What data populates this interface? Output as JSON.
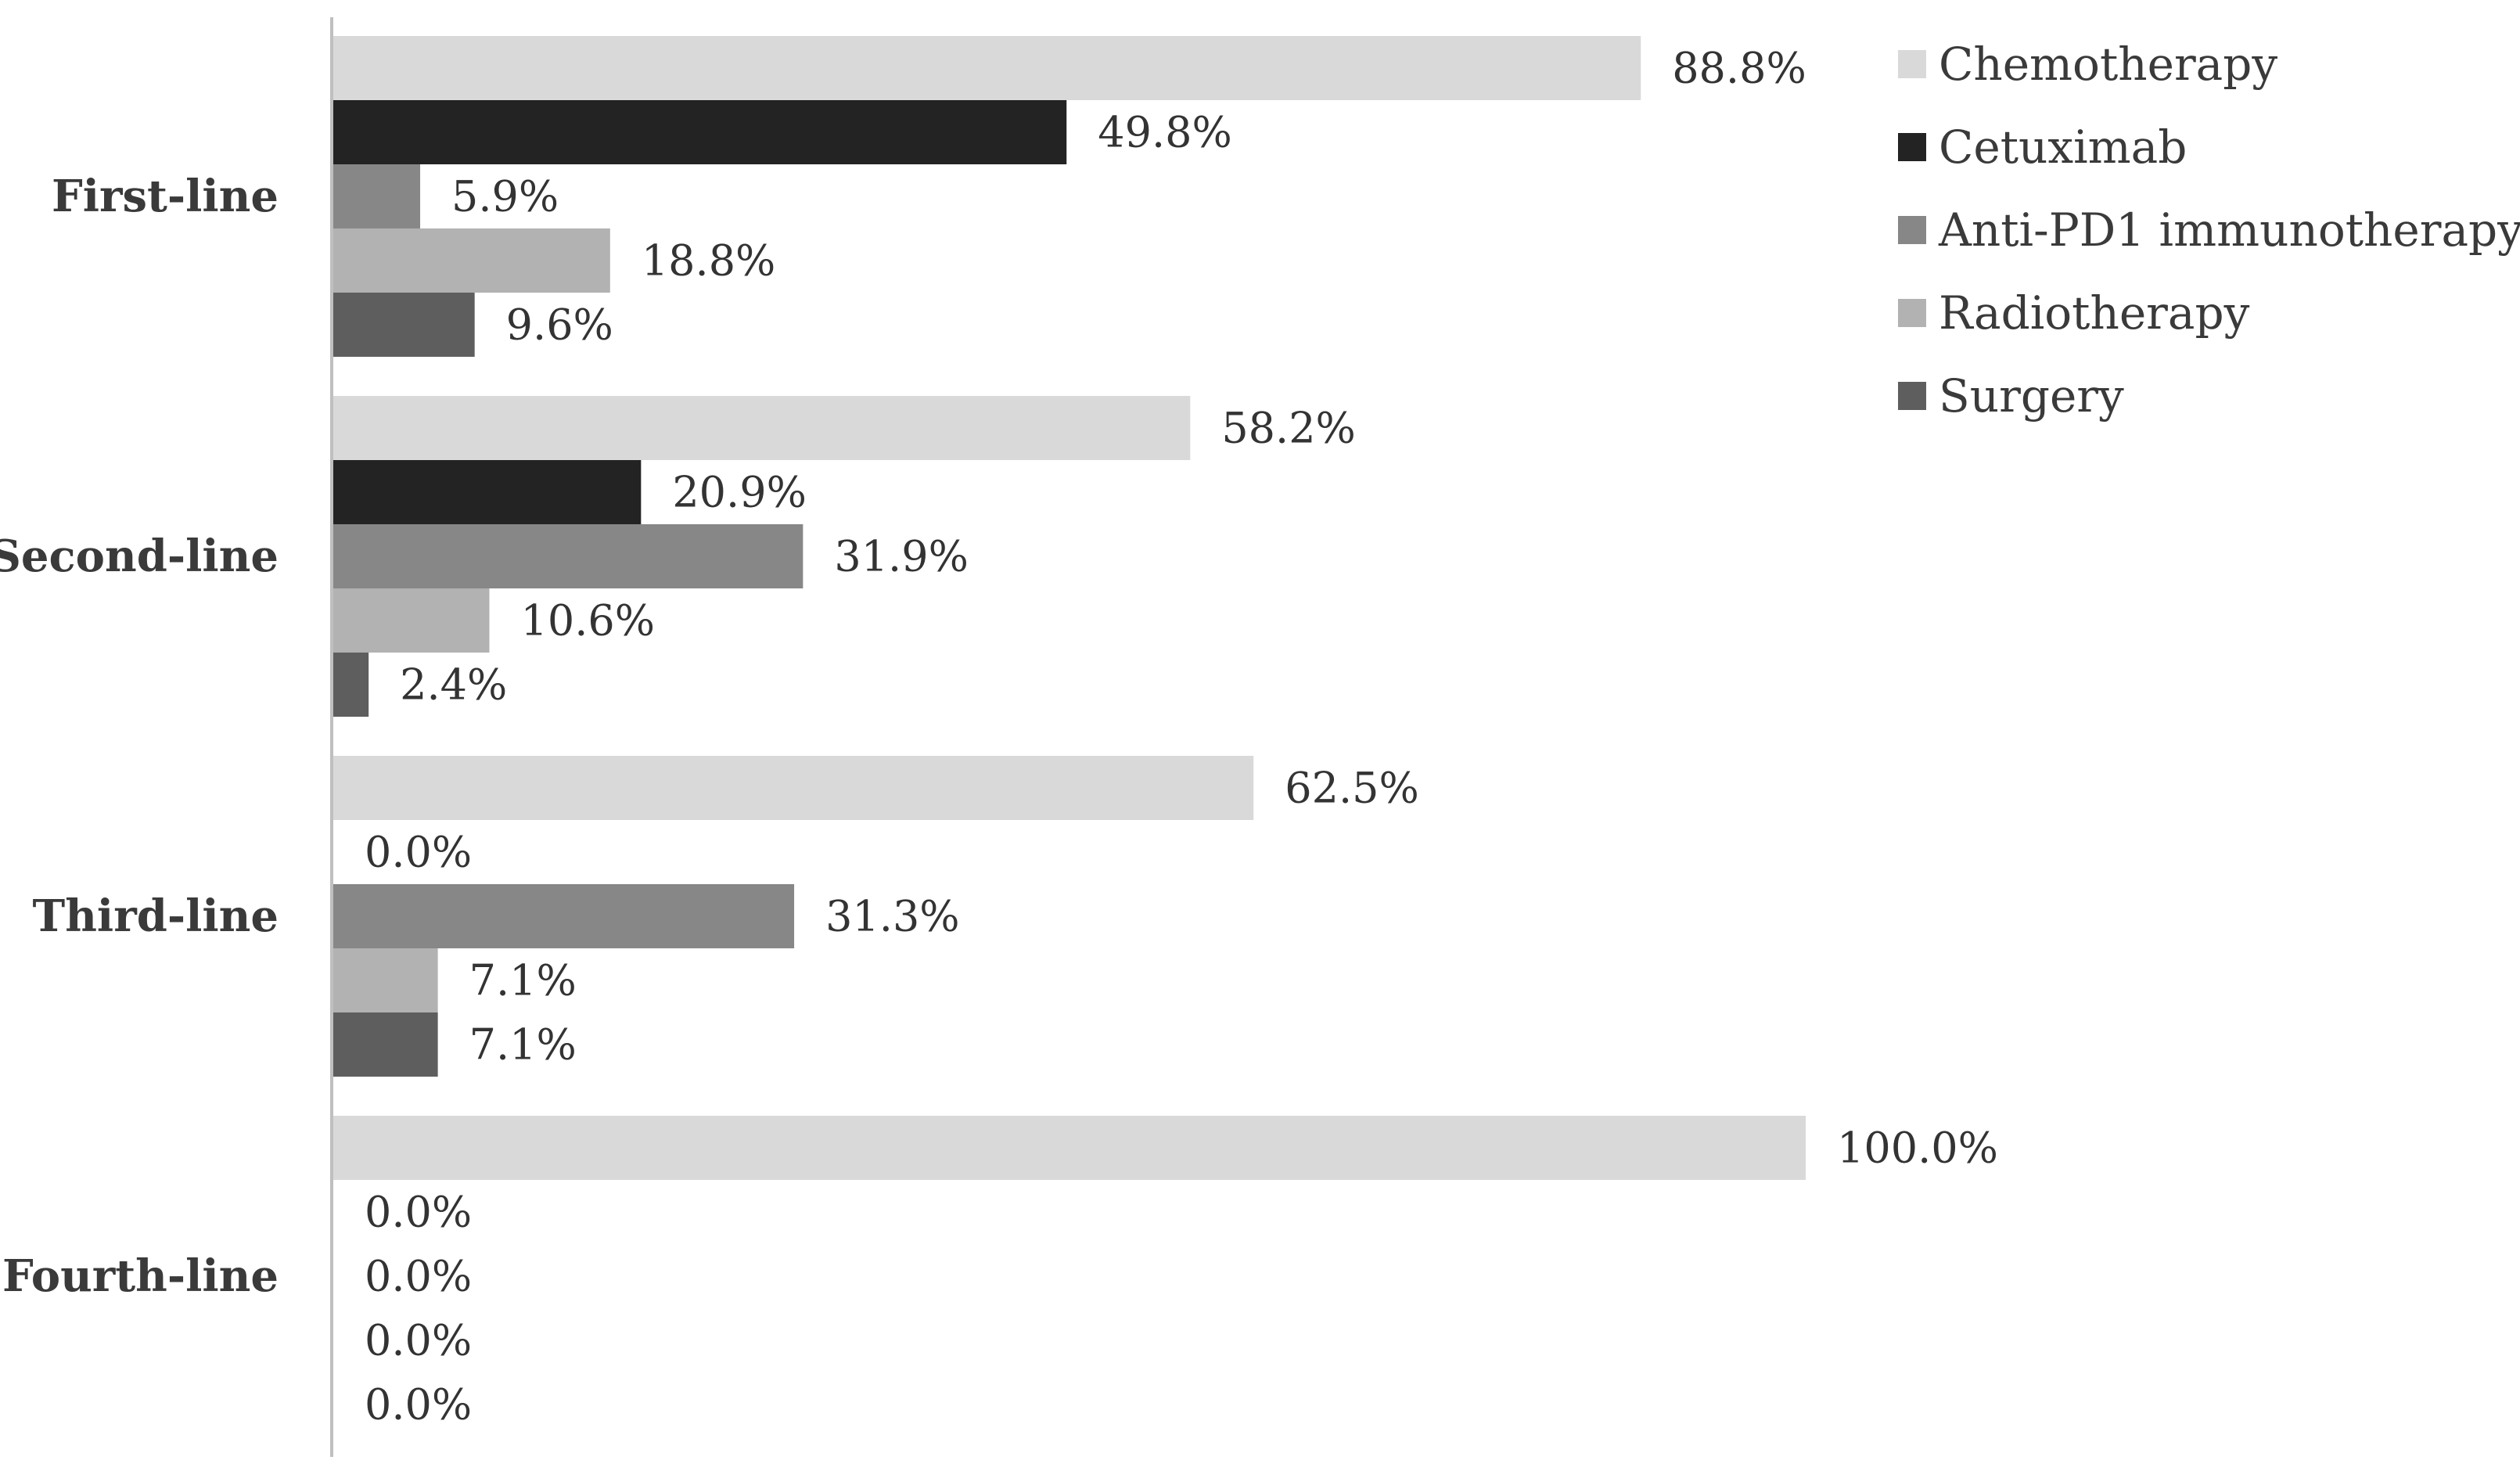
{
  "chart_data": {
    "type": "bar",
    "orientation": "horizontal",
    "categories": [
      "First-line",
      "Second-line",
      "Third-line",
      "Fourth-line"
    ],
    "series": [
      {
        "name": "Chemotherapy",
        "color": "#d9d9d9",
        "values": [
          88.8,
          58.2,
          62.5,
          100.0
        ],
        "labels": [
          "88.8%",
          "58.2%",
          "62.5%",
          "100.0%"
        ]
      },
      {
        "name": "Cetuximab",
        "color": "#232323",
        "values": [
          49.8,
          20.9,
          0.0,
          0.0
        ],
        "labels": [
          "49.8%",
          "20.9%",
          "0.0%",
          "0.0%"
        ]
      },
      {
        "name": "Anti-PD1 immunotherapy",
        "color": "#878787",
        "values": [
          5.9,
          31.9,
          31.3,
          0.0
        ],
        "labels": [
          "5.9%",
          "31.9%",
          "31.3%",
          "0.0%"
        ]
      },
      {
        "name": "Radiotherapy",
        "color": "#b2b2b2",
        "values": [
          18.8,
          10.6,
          7.1,
          0.0
        ],
        "labels": [
          "18.8%",
          "10.6%",
          "7.1%",
          "0.0%"
        ]
      },
      {
        "name": "Surgery",
        "color": "#5e5e5e",
        "values": [
          9.6,
          2.4,
          7.1,
          0.0
        ],
        "labels": [
          "9.6%",
          "2.4%",
          "7.1%",
          "0.0%"
        ]
      }
    ],
    "xlim": [
      0,
      100
    ],
    "grid": false,
    "data_labels": true,
    "legend_position": "top-right",
    "title": "",
    "xlabel": "",
    "ylabel": ""
  }
}
